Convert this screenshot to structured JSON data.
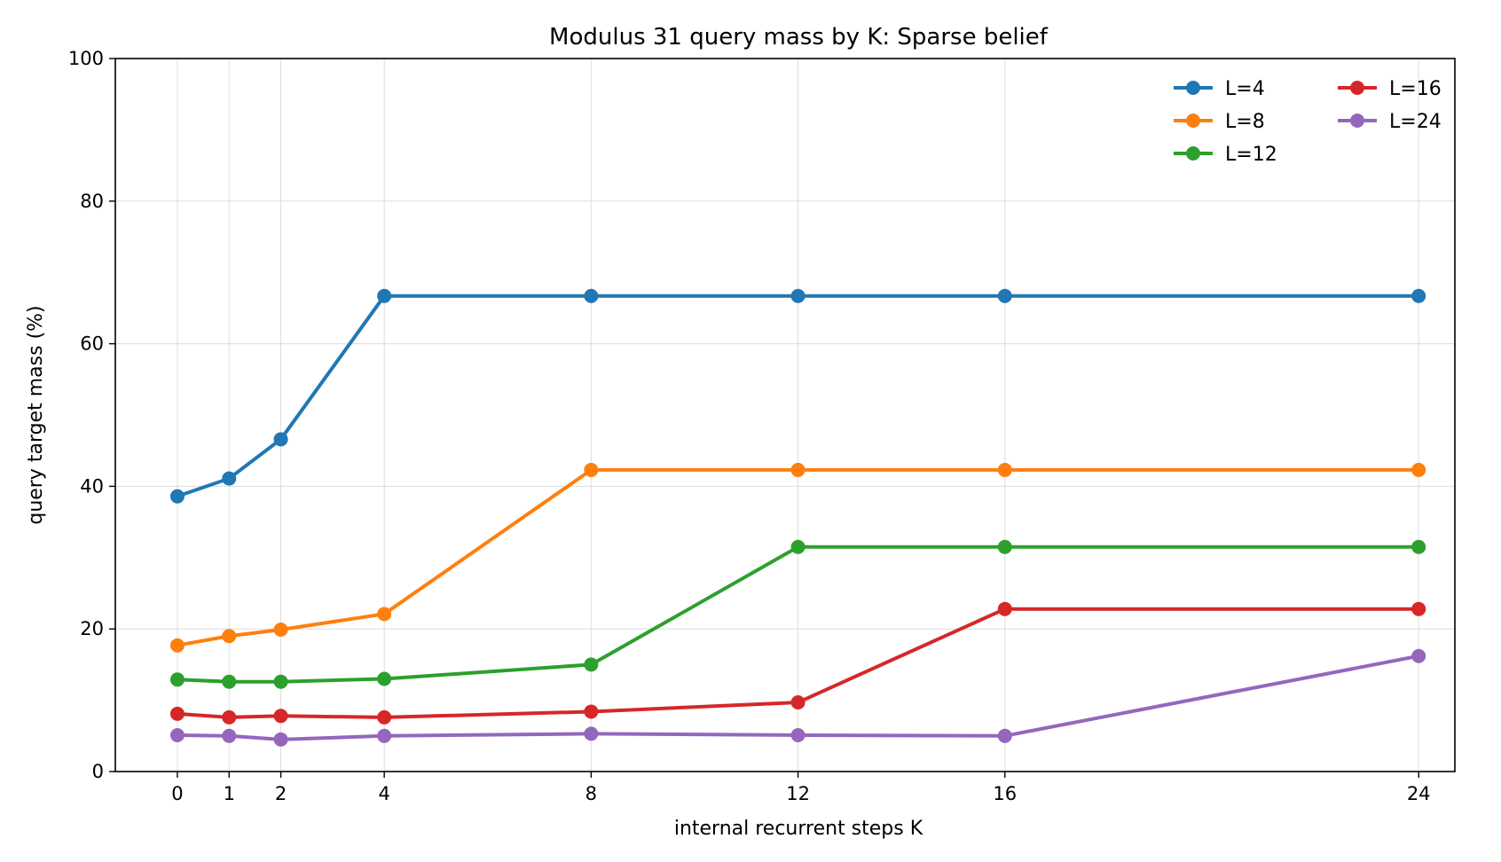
{
  "chart_data": {
    "type": "line",
    "title": "Modulus 31 query mass by K: Sparse belief",
    "xlabel": "internal recurrent steps K",
    "ylabel": "query target mass (%)",
    "x": [
      0,
      1,
      2,
      4,
      8,
      12,
      16,
      24
    ],
    "x_ticks": [
      "0",
      "1",
      "2",
      "4",
      "8",
      "12",
      "16",
      "24"
    ],
    "y_ticks": [
      "0",
      "20",
      "40",
      "60",
      "80",
      "100"
    ],
    "xlim": [
      -1.2,
      24.7
    ],
    "ylim": [
      0,
      100
    ],
    "grid": true,
    "legend_position": "top-right",
    "legend_columns": 2,
    "series": [
      {
        "name": "L=4",
        "color": "#1f77b4",
        "values": [
          38.6,
          41.1,
          46.6,
          66.7,
          66.7,
          66.7,
          66.7,
          66.7
        ]
      },
      {
        "name": "L=8",
        "color": "#ff7f0e",
        "values": [
          17.7,
          19.0,
          19.9,
          22.1,
          42.3,
          42.3,
          42.3,
          42.3
        ]
      },
      {
        "name": "L=12",
        "color": "#2ca02c",
        "values": [
          12.9,
          12.6,
          12.6,
          13.0,
          15.0,
          31.5,
          31.5,
          31.5
        ]
      },
      {
        "name": "L=16",
        "color": "#d62728",
        "values": [
          8.1,
          7.6,
          7.8,
          7.6,
          8.4,
          9.7,
          22.8,
          22.8
        ]
      },
      {
        "name": "L=24",
        "color": "#9467bd",
        "values": [
          5.1,
          5.0,
          4.5,
          5.0,
          5.3,
          5.1,
          5.0,
          16.2
        ]
      }
    ]
  }
}
